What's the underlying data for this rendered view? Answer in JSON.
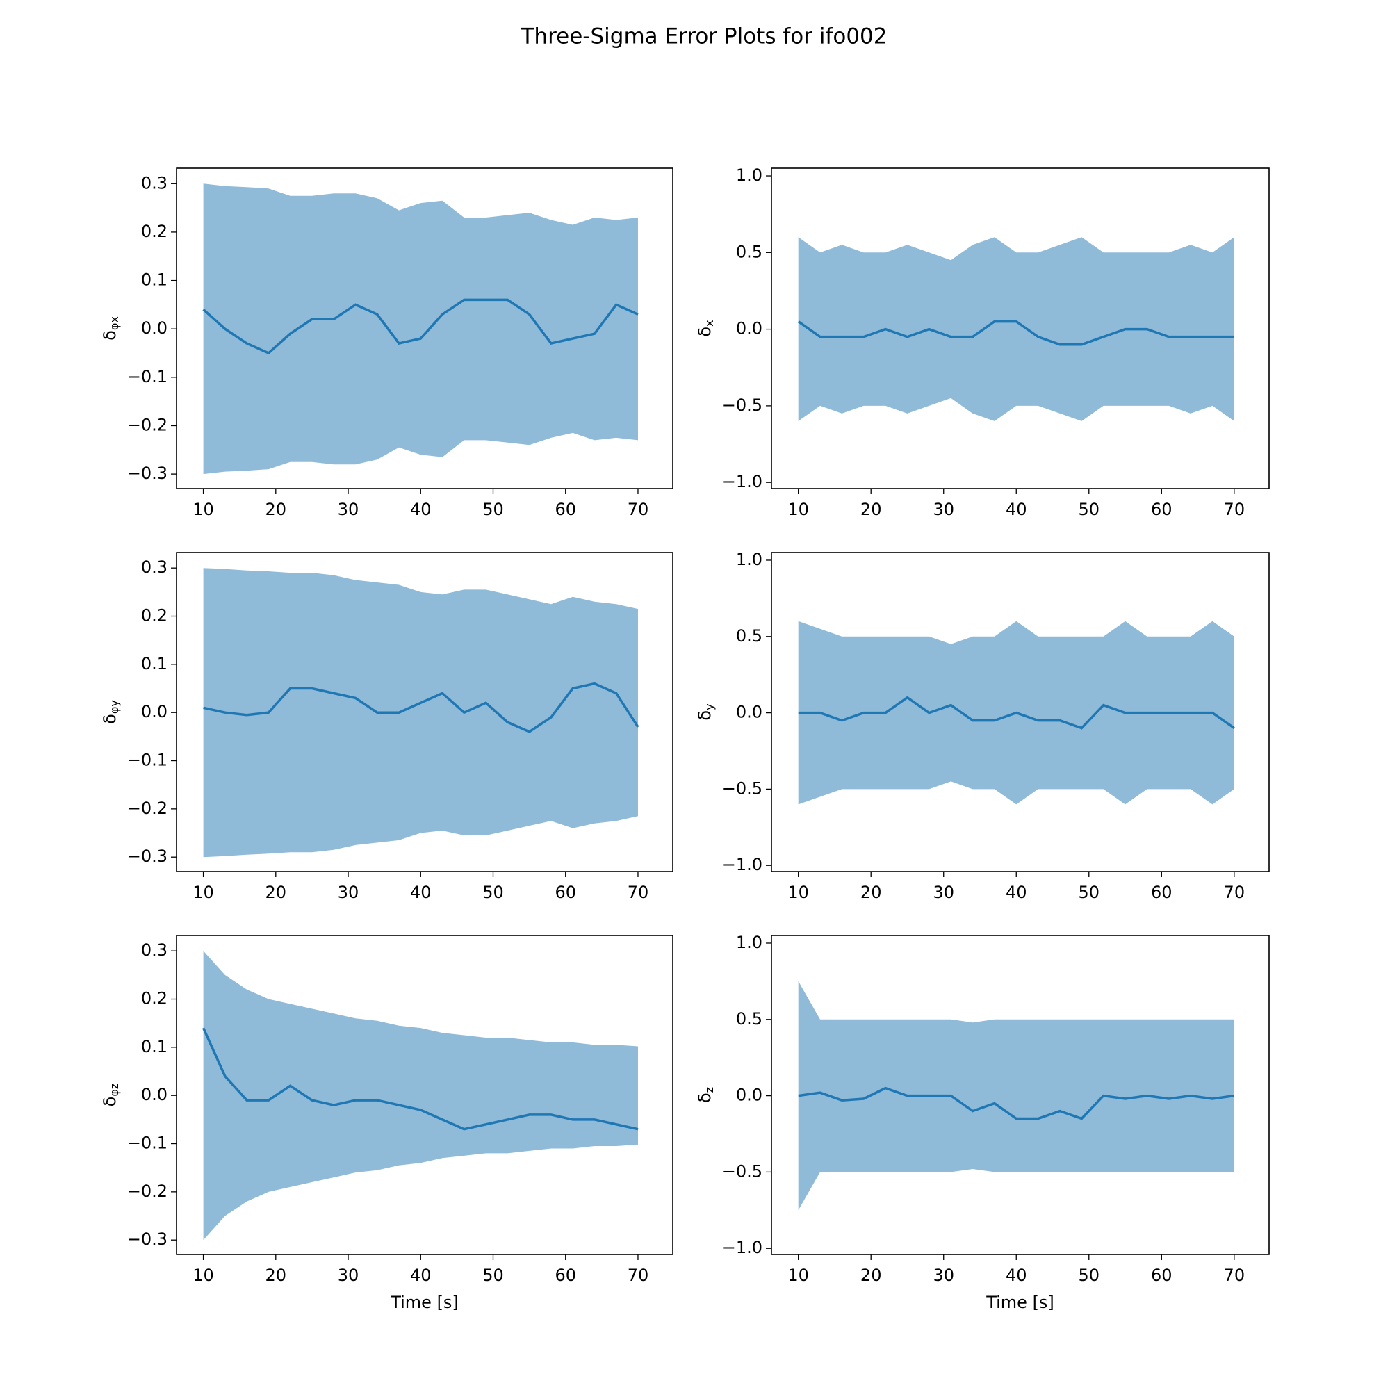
{
  "title": "Three-Sigma Error Plots for ifo002",
  "chart_data": [
    {
      "type": "line",
      "ylabel": "δ",
      "ylabel_sub": "φx",
      "x": [
        10,
        13,
        16,
        19,
        22,
        25,
        28,
        31,
        34,
        37,
        40,
        43,
        46,
        49,
        52,
        55,
        58,
        61,
        64,
        67,
        70
      ],
      "series": [
        {
          "color": "#1f77b4",
          "values": [
            0.04,
            0.0,
            -0.03,
            -0.05,
            -0.01,
            0.02,
            0.02,
            0.05,
            0.03,
            -0.03,
            -0.02,
            0.03,
            0.06,
            0.06,
            0.06,
            0.03,
            -0.03,
            -0.02,
            -0.01,
            0.05,
            0.03
          ]
        }
      ],
      "band": {
        "color": "#1f77b4",
        "upper": [
          0.3,
          0.295,
          0.293,
          0.29,
          0.275,
          0.275,
          0.28,
          0.28,
          0.27,
          0.245,
          0.26,
          0.265,
          0.23,
          0.23,
          0.235,
          0.24,
          0.225,
          0.215,
          0.23,
          0.225,
          0.23
        ],
        "lower": [
          -0.3,
          -0.295,
          -0.293,
          -0.29,
          -0.275,
          -0.275,
          -0.28,
          -0.28,
          -0.27,
          -0.245,
          -0.26,
          -0.265,
          -0.23,
          -0.23,
          -0.235,
          -0.24,
          -0.225,
          -0.215,
          -0.23,
          -0.225,
          -0.23
        ]
      },
      "xlim": [
        6.3,
        74.8
      ],
      "xticks": [
        10,
        20,
        30,
        40,
        50,
        60,
        70
      ],
      "ylim": [
        -0.33,
        0.332
      ],
      "yticks": [
        {
          "value": -0.3,
          "label": "−0.3"
        },
        {
          "value": -0.2,
          "label": "−0.2"
        },
        {
          "value": -0.1,
          "label": "−0.1"
        },
        {
          "value": 0.0,
          "label": "0.0"
        },
        0.1,
        0.2,
        0.3
      ]
    },
    {
      "type": "line",
      "ylabel": "δ",
      "ylabel_sub": "x",
      "x": [
        10,
        13,
        16,
        19,
        22,
        25,
        28,
        31,
        34,
        37,
        40,
        43,
        46,
        49,
        52,
        55,
        58,
        61,
        64,
        67,
        70
      ],
      "series": [
        {
          "color": "#1f77b4",
          "values": [
            0.05,
            -0.05,
            -0.05,
            -0.05,
            0.0,
            -0.05,
            0.0,
            -0.05,
            -0.05,
            0.05,
            0.05,
            -0.05,
            -0.1,
            -0.1,
            -0.05,
            0.0,
            0.0,
            -0.05,
            -0.05,
            -0.05,
            -0.05
          ]
        }
      ],
      "band": {
        "color": "#1f77b4",
        "upper": [
          0.6,
          0.5,
          0.55,
          0.5,
          0.5,
          0.55,
          0.5,
          0.45,
          0.55,
          0.6,
          0.5,
          0.5,
          0.55,
          0.6,
          0.5,
          0.5,
          0.5,
          0.5,
          0.55,
          0.5,
          0.6
        ],
        "lower": [
          -0.6,
          -0.5,
          -0.55,
          -0.5,
          -0.5,
          -0.55,
          -0.5,
          -0.45,
          -0.55,
          -0.6,
          -0.5,
          -0.5,
          -0.55,
          -0.6,
          -0.5,
          -0.5,
          -0.5,
          -0.5,
          -0.55,
          -0.5,
          -0.6
        ]
      },
      "xlim": [
        6.3,
        74.8
      ],
      "xticks": [
        10,
        20,
        30,
        40,
        50,
        60,
        70
      ],
      "ylim": [
        -1.04,
        1.05
      ],
      "yticks": [
        {
          "value": -1.0,
          "label": "−1.0"
        },
        {
          "value": -0.5,
          "label": "−0.5"
        },
        {
          "value": 0.0,
          "label": "0.0"
        },
        0.5,
        {
          "value": 1.0,
          "label": "1.0"
        }
      ]
    },
    {
      "type": "line",
      "ylabel": "δ",
      "ylabel_sub": "φy",
      "x": [
        10,
        13,
        16,
        19,
        22,
        25,
        28,
        31,
        34,
        37,
        40,
        43,
        46,
        49,
        52,
        55,
        58,
        61,
        64,
        67,
        70
      ],
      "series": [
        {
          "color": "#1f77b4",
          "values": [
            0.01,
            0.0,
            -0.005,
            0.0,
            0.05,
            0.05,
            0.04,
            0.03,
            0.0,
            0.0,
            0.02,
            0.04,
            0.0,
            0.02,
            -0.02,
            -0.04,
            -0.01,
            0.05,
            0.06,
            0.04,
            -0.03
          ]
        }
      ],
      "band": {
        "color": "#1f77b4",
        "upper": [
          0.3,
          0.298,
          0.295,
          0.293,
          0.29,
          0.29,
          0.285,
          0.275,
          0.27,
          0.265,
          0.25,
          0.245,
          0.255,
          0.255,
          0.245,
          0.235,
          0.225,
          0.24,
          0.23,
          0.225,
          0.215
        ],
        "lower": [
          -0.3,
          -0.298,
          -0.295,
          -0.293,
          -0.29,
          -0.29,
          -0.285,
          -0.275,
          -0.27,
          -0.265,
          -0.25,
          -0.245,
          -0.255,
          -0.255,
          -0.245,
          -0.235,
          -0.225,
          -0.24,
          -0.23,
          -0.225,
          -0.215
        ]
      },
      "xlim": [
        6.3,
        74.8
      ],
      "xticks": [
        10,
        20,
        30,
        40,
        50,
        60,
        70
      ],
      "ylim": [
        -0.33,
        0.332
      ],
      "yticks": [
        {
          "value": -0.3,
          "label": "−0.3"
        },
        {
          "value": -0.2,
          "label": "−0.2"
        },
        {
          "value": -0.1,
          "label": "−0.1"
        },
        {
          "value": 0.0,
          "label": "0.0"
        },
        0.1,
        0.2,
        0.3
      ]
    },
    {
      "type": "line",
      "ylabel": "δ",
      "ylabel_sub": "y",
      "x": [
        10,
        13,
        16,
        19,
        22,
        25,
        28,
        31,
        34,
        37,
        40,
        43,
        46,
        49,
        52,
        55,
        58,
        61,
        64,
        67,
        70
      ],
      "series": [
        {
          "color": "#1f77b4",
          "values": [
            0.0,
            0.0,
            -0.05,
            0.0,
            0.0,
            0.1,
            0.0,
            0.05,
            -0.05,
            -0.05,
            0.0,
            -0.05,
            -0.05,
            -0.1,
            0.05,
            0.0,
            0.0,
            0.0,
            0.0,
            0.0,
            -0.1
          ]
        }
      ],
      "band": {
        "color": "#1f77b4",
        "upper": [
          0.6,
          0.55,
          0.5,
          0.5,
          0.5,
          0.5,
          0.5,
          0.45,
          0.5,
          0.5,
          0.6,
          0.5,
          0.5,
          0.5,
          0.5,
          0.6,
          0.5,
          0.5,
          0.5,
          0.6,
          0.5
        ],
        "lower": [
          -0.6,
          -0.55,
          -0.5,
          -0.5,
          -0.5,
          -0.5,
          -0.5,
          -0.45,
          -0.5,
          -0.5,
          -0.6,
          -0.5,
          -0.5,
          -0.5,
          -0.5,
          -0.6,
          -0.5,
          -0.5,
          -0.5,
          -0.6,
          -0.5
        ]
      },
      "xlim": [
        6.3,
        74.8
      ],
      "xticks": [
        10,
        20,
        30,
        40,
        50,
        60,
        70
      ],
      "ylim": [
        -1.04,
        1.05
      ],
      "yticks": [
        {
          "value": -1.0,
          "label": "−1.0"
        },
        {
          "value": -0.5,
          "label": "−0.5"
        },
        {
          "value": 0.0,
          "label": "0.0"
        },
        0.5,
        {
          "value": 1.0,
          "label": "1.0"
        }
      ]
    },
    {
      "type": "line",
      "ylabel": "δ",
      "ylabel_sub": "φz",
      "xlabel": "Time [s]",
      "x": [
        10,
        13,
        16,
        19,
        22,
        25,
        28,
        31,
        34,
        37,
        40,
        43,
        46,
        49,
        52,
        55,
        58,
        61,
        64,
        67,
        70
      ],
      "series": [
        {
          "color": "#1f77b4",
          "values": [
            0.14,
            0.04,
            -0.01,
            -0.01,
            0.02,
            -0.01,
            -0.02,
            -0.01,
            -0.01,
            -0.02,
            -0.03,
            -0.05,
            -0.07,
            -0.06,
            -0.05,
            -0.04,
            -0.04,
            -0.05,
            -0.05,
            -0.06,
            -0.07
          ]
        }
      ],
      "band": {
        "color": "#1f77b4",
        "upper": [
          0.3,
          0.25,
          0.22,
          0.2,
          0.19,
          0.18,
          0.17,
          0.16,
          0.155,
          0.145,
          0.14,
          0.13,
          0.125,
          0.12,
          0.12,
          0.115,
          0.11,
          0.11,
          0.105,
          0.105,
          0.102
        ],
        "lower": [
          -0.3,
          -0.25,
          -0.22,
          -0.2,
          -0.19,
          -0.18,
          -0.17,
          -0.16,
          -0.155,
          -0.145,
          -0.14,
          -0.13,
          -0.125,
          -0.12,
          -0.12,
          -0.115,
          -0.11,
          -0.11,
          -0.105,
          -0.105,
          -0.102
        ]
      },
      "xlim": [
        6.3,
        74.8
      ],
      "xticks": [
        10,
        20,
        30,
        40,
        50,
        60,
        70
      ],
      "ylim": [
        -0.33,
        0.332
      ],
      "yticks": [
        {
          "value": -0.3,
          "label": "−0.3"
        },
        {
          "value": -0.2,
          "label": "−0.2"
        },
        {
          "value": -0.1,
          "label": "−0.1"
        },
        {
          "value": 0.0,
          "label": "0.0"
        },
        0.1,
        0.2,
        0.3
      ]
    },
    {
      "type": "line",
      "ylabel": "δ",
      "ylabel_sub": "z",
      "xlabel": "Time [s]",
      "x": [
        10,
        13,
        16,
        19,
        22,
        25,
        28,
        31,
        34,
        37,
        40,
        43,
        46,
        49,
        52,
        55,
        58,
        61,
        64,
        67,
        70
      ],
      "series": [
        {
          "color": "#1f77b4",
          "values": [
            0.0,
            0.02,
            -0.03,
            -0.02,
            0.05,
            0.0,
            0.0,
            0.0,
            -0.1,
            -0.05,
            -0.15,
            -0.15,
            -0.1,
            -0.15,
            0.0,
            -0.02,
            0.0,
            -0.02,
            0.0,
            -0.02,
            0.0
          ]
        }
      ],
      "band": {
        "color": "#1f77b4",
        "upper": [
          0.75,
          0.5,
          0.5,
          0.5,
          0.5,
          0.5,
          0.5,
          0.5,
          0.48,
          0.5,
          0.5,
          0.5,
          0.5,
          0.5,
          0.5,
          0.5,
          0.5,
          0.5,
          0.5,
          0.5,
          0.5
        ],
        "lower": [
          -0.75,
          -0.5,
          -0.5,
          -0.5,
          -0.5,
          -0.5,
          -0.5,
          -0.5,
          -0.48,
          -0.5,
          -0.5,
          -0.5,
          -0.5,
          -0.5,
          -0.5,
          -0.5,
          -0.5,
          -0.5,
          -0.5,
          -0.5,
          -0.5
        ]
      },
      "xlim": [
        6.3,
        74.8
      ],
      "xticks": [
        10,
        20,
        30,
        40,
        50,
        60,
        70
      ],
      "ylim": [
        -1.04,
        1.05
      ],
      "yticks": [
        {
          "value": -1.0,
          "label": "−1.0"
        },
        {
          "value": -0.5,
          "label": "−0.5"
        },
        {
          "value": 0.0,
          "label": "0.0"
        },
        0.5,
        {
          "value": 1.0,
          "label": "1.0"
        }
      ]
    }
  ]
}
